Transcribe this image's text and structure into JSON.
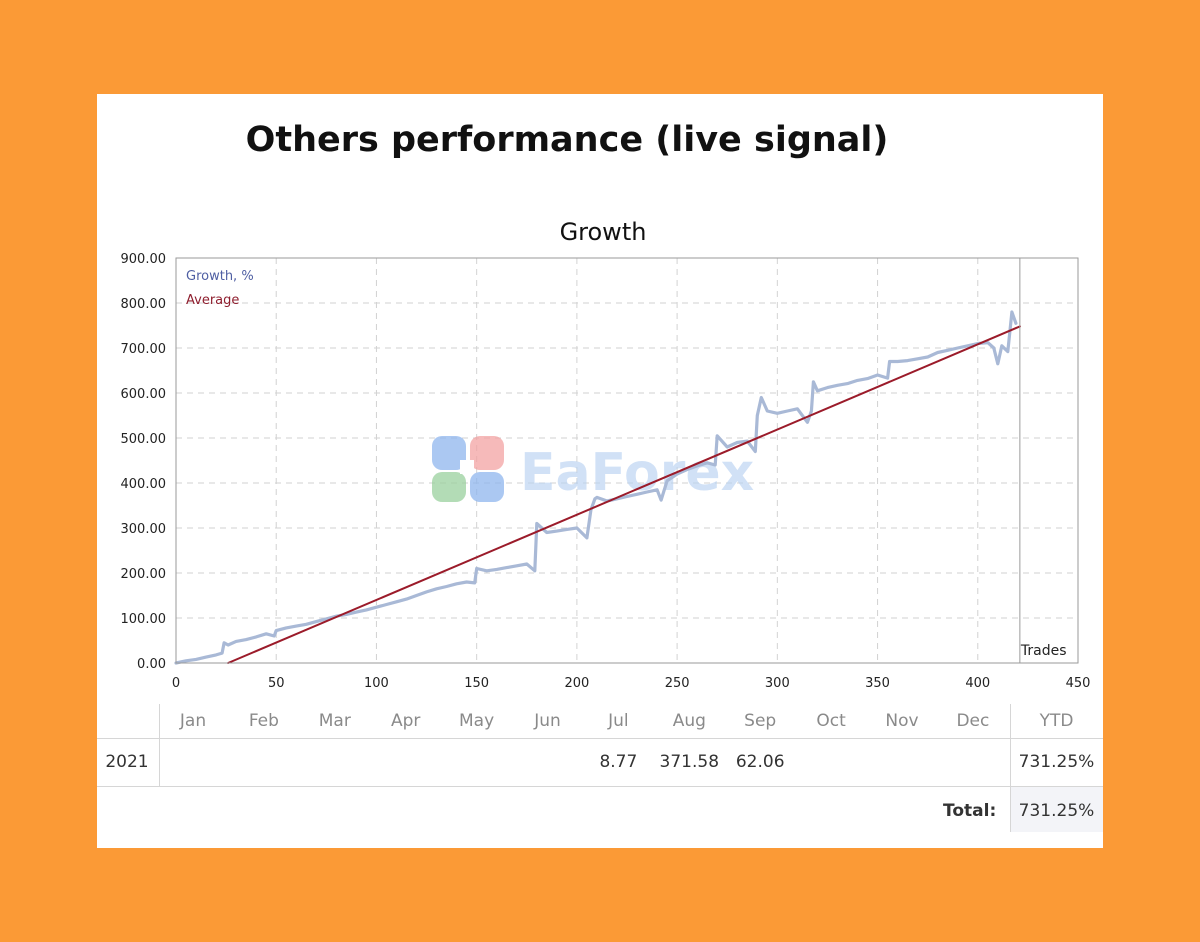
{
  "page": {
    "heading": "Others performance (live signal)"
  },
  "chart_data": {
    "type": "line",
    "title": "Growth",
    "xlabel": "",
    "ylabel": "",
    "xlim": [
      0,
      450
    ],
    "ylim": [
      0,
      900
    ],
    "x_ticks": [
      0,
      50,
      100,
      150,
      200,
      250,
      300,
      350,
      400,
      450
    ],
    "y_ticks": [
      "0.00",
      "100.00",
      "200.00",
      "300.00",
      "400.00",
      "500.00",
      "600.00",
      "700.00",
      "800.00",
      "900.00"
    ],
    "grid": true,
    "legend": [
      "Growth, %",
      "Average"
    ],
    "legend_position": "top-left",
    "trades_label": "Trades",
    "trades_marker_x": 421,
    "series": [
      {
        "name": "Growth, %",
        "color": "#a9b9d6",
        "x": [
          0,
          5,
          10,
          15,
          20,
          23,
          24,
          26,
          30,
          35,
          40,
          45,
          49,
          50,
          55,
          60,
          65,
          70,
          75,
          80,
          85,
          90,
          95,
          100,
          105,
          110,
          115,
          120,
          125,
          130,
          135,
          140,
          145,
          149,
          150,
          155,
          160,
          165,
          170,
          175,
          179,
          180,
          185,
          190,
          195,
          200,
          205,
          207,
          209,
          210,
          215,
          220,
          225,
          230,
          235,
          240,
          242,
          245,
          250,
          255,
          260,
          265,
          269,
          270,
          275,
          280,
          285,
          289,
          290,
          292,
          295,
          300,
          305,
          310,
          315,
          317,
          318,
          320,
          325,
          330,
          335,
          340,
          345,
          350,
          355,
          356,
          360,
          365,
          370,
          375,
          380,
          385,
          390,
          395,
          400,
          405,
          408,
          410,
          412,
          415,
          417,
          419
        ],
        "y": [
          0,
          5,
          8,
          13,
          18,
          22,
          45,
          40,
          48,
          52,
          58,
          65,
          60,
          72,
          78,
          82,
          86,
          92,
          98,
          104,
          108,
          113,
          118,
          124,
          130,
          136,
          142,
          150,
          158,
          165,
          170,
          176,
          180,
          178,
          210,
          205,
          208,
          212,
          216,
          220,
          205,
          310,
          290,
          293,
          297,
          300,
          278,
          340,
          365,
          368,
          360,
          365,
          370,
          375,
          380,
          385,
          362,
          405,
          420,
          430,
          438,
          445,
          440,
          505,
          480,
          490,
          493,
          470,
          550,
          590,
          560,
          555,
          560,
          565,
          535,
          560,
          625,
          605,
          612,
          617,
          621,
          628,
          632,
          640,
          633,
          670,
          670,
          672,
          676,
          680,
          690,
          695,
          700,
          705,
          710,
          712,
          700,
          665,
          705,
          692,
          780,
          755
        ]
      },
      {
        "name": "Average",
        "color": "#9b1b2a",
        "x": [
          26,
          421
        ],
        "y": [
          0,
          748
        ]
      }
    ]
  },
  "watermark": {
    "text": "EaForex"
  },
  "monthly_table": {
    "months": [
      "Jan",
      "Feb",
      "Mar",
      "Apr",
      "May",
      "Jun",
      "Jul",
      "Aug",
      "Sep",
      "Oct",
      "Nov",
      "Dec"
    ],
    "ytd_header": "YTD",
    "rows": [
      {
        "year": "2021",
        "values": [
          "",
          "",
          "",
          "",
          "",
          "",
          "8.77",
          "371.58",
          "62.06",
          "",
          "",
          ""
        ],
        "ytd": "731.25%"
      }
    ],
    "total_label": "Total:",
    "total_value": "731.25%"
  }
}
